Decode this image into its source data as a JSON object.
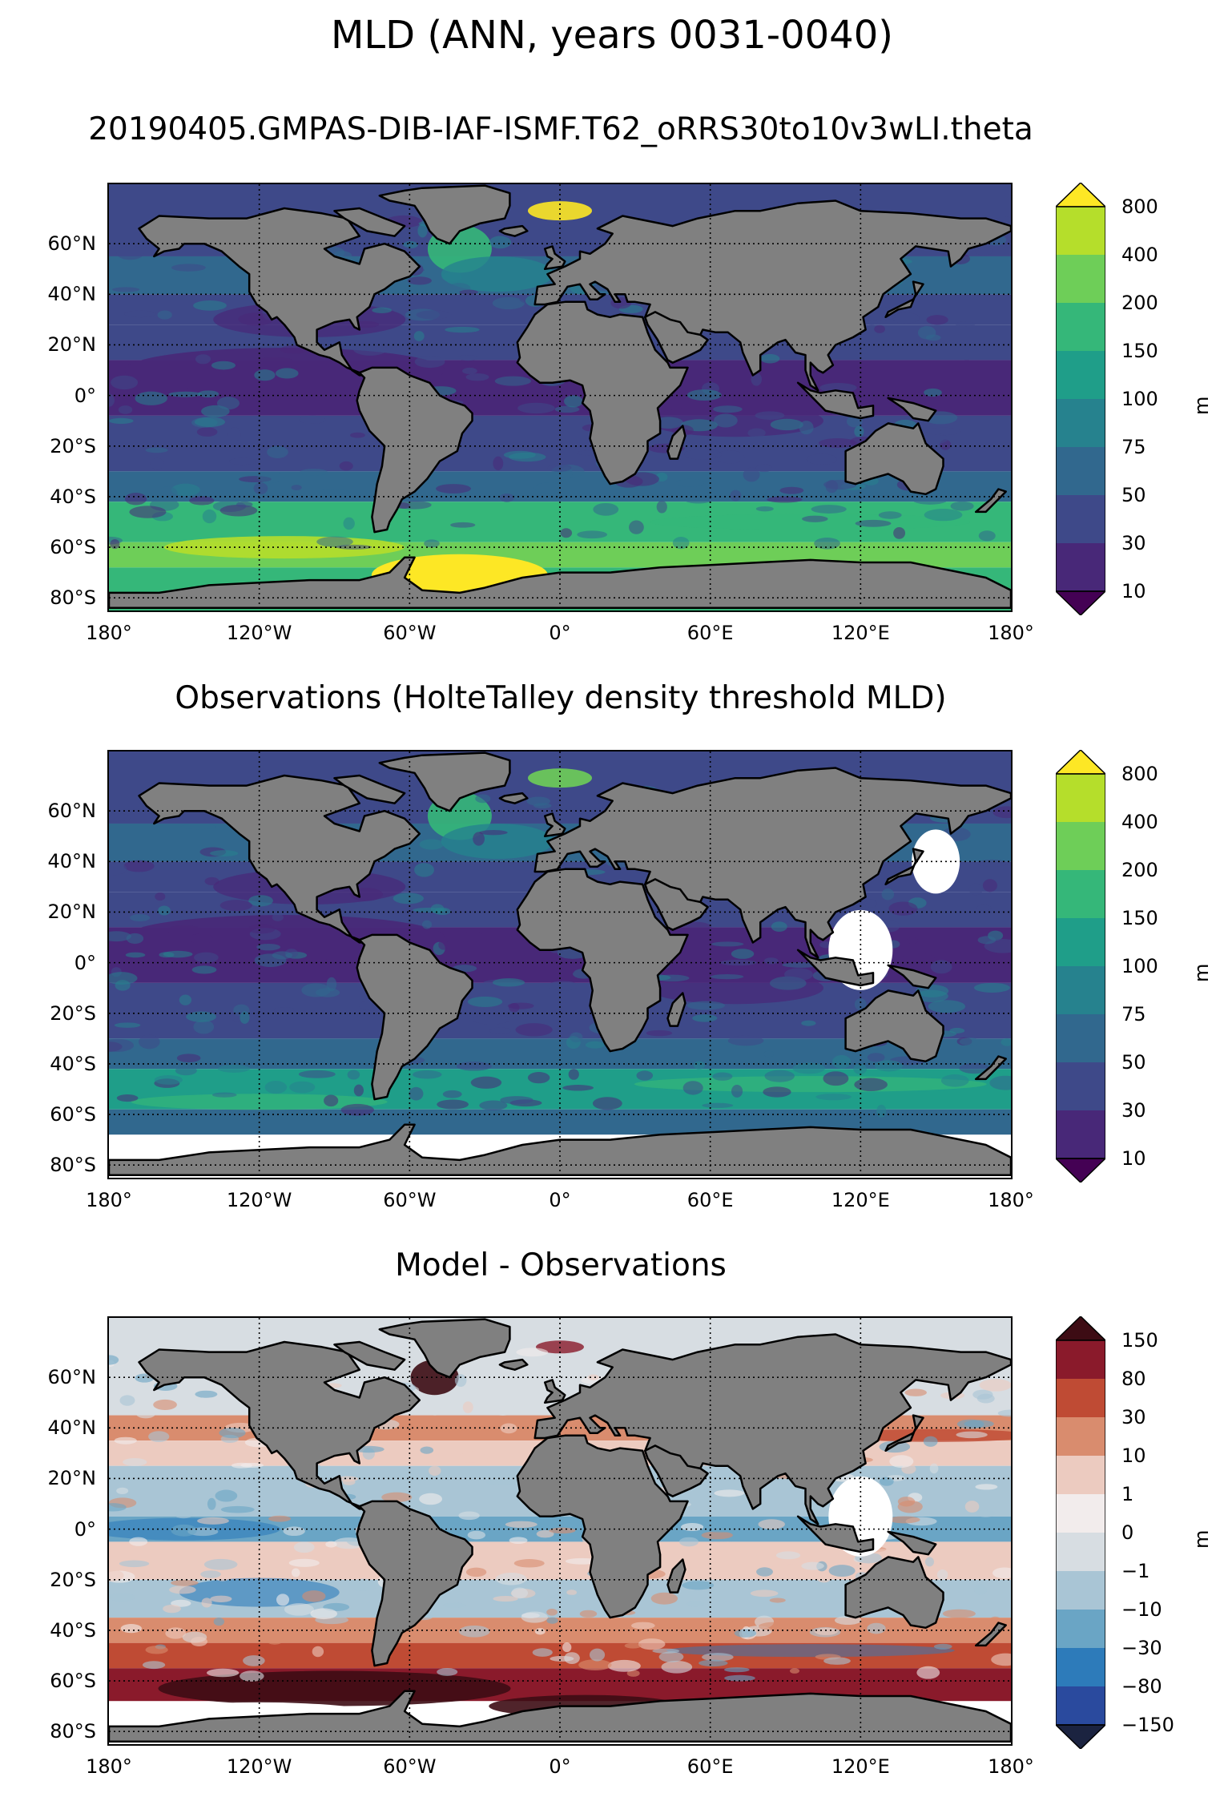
{
  "figure": {
    "suptitle": "MLD (ANN, years 0031-0040)"
  },
  "axes": {
    "lat_labels": [
      "60°N",
      "40°N",
      "20°N",
      "0°",
      "20°S",
      "40°S",
      "60°S",
      "80°S"
    ],
    "lon_labels": [
      "180°",
      "120°W",
      "60°W",
      "0°",
      "60°E",
      "120°E",
      "180°"
    ]
  },
  "panels": [
    {
      "title": "20190405.GMPAS-DIB-IAF-ISMF.T62_oRRS30to10v3wLI.theta",
      "colorbar_unit": "m",
      "colorbar_ticks": [
        "800",
        "400",
        "200",
        "150",
        "100",
        "75",
        "50",
        "30",
        "10"
      ],
      "colorbar_colors": [
        "#fde725",
        "#b5de2b",
        "#6ece58",
        "#35b779",
        "#1f9e89",
        "#26828e",
        "#31688e",
        "#3e4989",
        "#482878",
        "#440154"
      ]
    },
    {
      "title": "Observations (HolteTalley density threshold MLD)",
      "colorbar_unit": "m",
      "colorbar_ticks": [
        "800",
        "400",
        "200",
        "150",
        "100",
        "75",
        "50",
        "30",
        "10"
      ],
      "colorbar_colors": [
        "#fde725",
        "#b5de2b",
        "#6ece58",
        "#35b779",
        "#1f9e89",
        "#26828e",
        "#31688e",
        "#3e4989",
        "#482878",
        "#440154"
      ]
    },
    {
      "title": "Model - Observations",
      "colorbar_unit": "m",
      "colorbar_ticks": [
        "150",
        "80",
        "30",
        "10",
        "1",
        "0",
        "−1",
        "−10",
        "−30",
        "−80",
        "−150"
      ],
      "colorbar_colors": [
        "#3d0c14",
        "#8a1a2b",
        "#bf4b34",
        "#d98c6e",
        "#eccbc0",
        "#f2ecec",
        "#d7dde2",
        "#a9c5d5",
        "#6aa5c5",
        "#2d7bba",
        "#2a4a9e",
        "#1b2340"
      ]
    }
  ],
  "colors": {
    "land": "#808080",
    "coast": "#000000",
    "missing": "#ffffff",
    "grid": "#000000"
  }
}
